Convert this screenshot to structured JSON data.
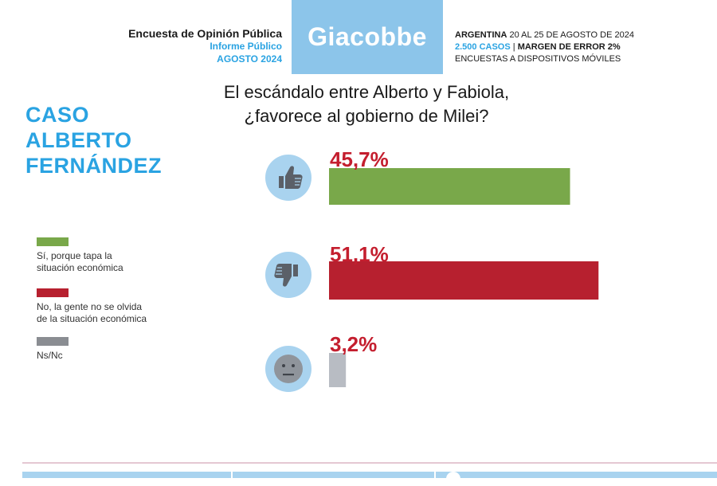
{
  "header": {
    "line1": "Encuesta de Opinión Pública",
    "line2": "Informe Público",
    "line3": "AGOSTO 2024",
    "brand": "Giacobbe",
    "right_country": "ARGENTINA",
    "right_dates": " 20 AL 25 DE AGOSTO DE 2024",
    "right_cases": "2.500 CASOS",
    "right_sep": " | ",
    "right_margin": "MARGEN DE ERROR 2%",
    "right_method": "ENCUESTAS A DISPOSITIVOS MÓVILES"
  },
  "side_title": [
    "CASO",
    "ALBERTO",
    "FERNÁNDEZ"
  ],
  "question": [
    "El escándalo entre Alberto y Fabiola,",
    "¿favorece al gobierno de Milei?"
  ],
  "icons": [
    "thumbs-up-icon",
    "thumbs-down-icon",
    "neutral-face-icon"
  ],
  "chart_data": {
    "type": "bar",
    "orientation": "horizontal",
    "title": "El escándalo entre Alberto y Fabiola, ¿favorece al gobierno de Milei?",
    "categories": [
      "Sí, porque tapa la situación económica",
      "No, la gente no se olvida de la situación económica",
      "Ns/Nc"
    ],
    "values": [
      45.7,
      51.1,
      3.2
    ],
    "data_labels": [
      "45,7%",
      "51,1%",
      "3,2%"
    ],
    "colors": [
      "#79a84a",
      "#b7202f",
      "#b8bcc3"
    ],
    "label_color": "#c41e2e",
    "grid": false,
    "legend_position": "left"
  },
  "legend": [
    {
      "line1": "Sí, porque tapa la",
      "line2": "situación económica",
      "color": "#79a84a"
    },
    {
      "line1": "No, la gente no se olvida",
      "line2": "de la situación económica",
      "color": "#b7202f"
    },
    {
      "line1": "Ns/Nc",
      "line2": "",
      "color": "#8a8d92"
    }
  ]
}
